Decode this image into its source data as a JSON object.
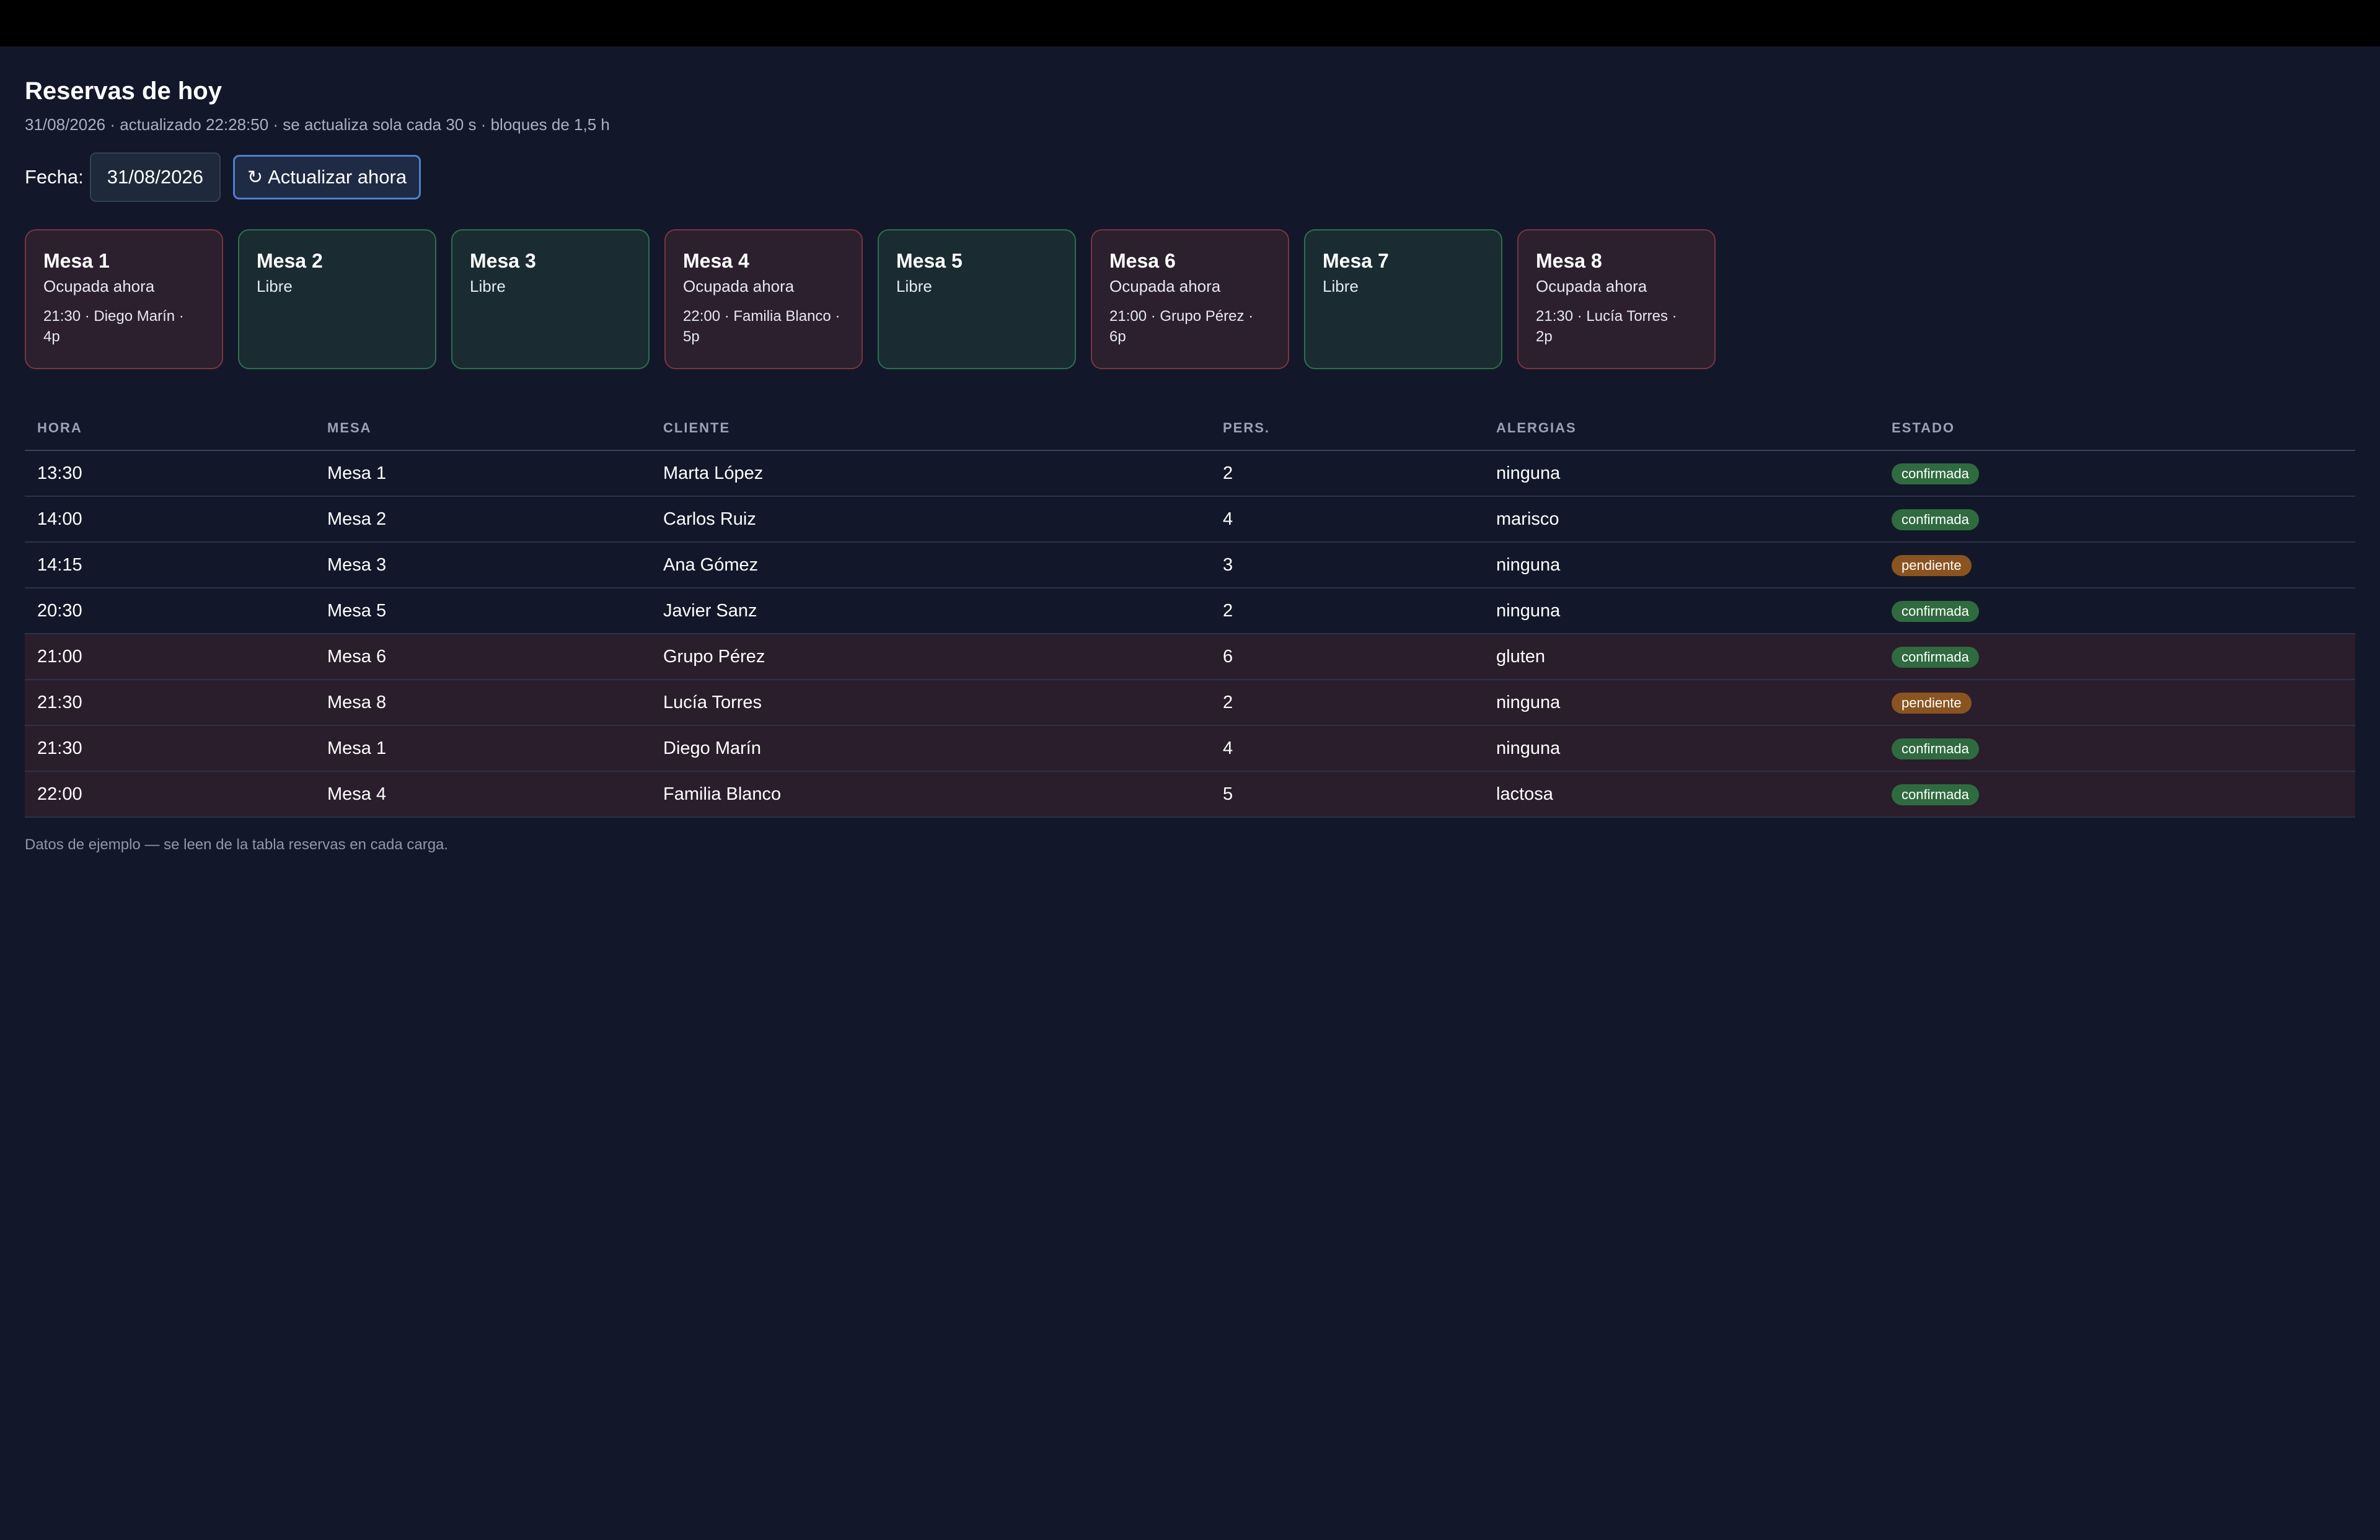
{
  "header": {
    "title": "Reservas de hoy",
    "subtitle": "31/08/2026 · actualizado 22:28:50 · se actualiza sola cada 30 s · bloques de 1,5 h"
  },
  "controls": {
    "date_label": "Fecha:",
    "date_value": "31/08/2026",
    "refresh_icon": "refresh-icon",
    "refresh_label": "Actualizar ahora"
  },
  "colors": {
    "background": "#121829",
    "busy_border": "#7a3541",
    "free_border": "#2f6e4d",
    "badge_confirmada": "#2f6b3f",
    "badge_pendiente": "#8a5420",
    "accent": "#4f7fd1"
  },
  "tables": [
    {
      "name": "Mesa 1",
      "status": "Ocupada ahora",
      "state": "busy",
      "detail": "21:30 · Diego Marín · 4p"
    },
    {
      "name": "Mesa 2",
      "status": "Libre",
      "state": "free",
      "detail": ""
    },
    {
      "name": "Mesa 3",
      "status": "Libre",
      "state": "free",
      "detail": ""
    },
    {
      "name": "Mesa 4",
      "status": "Ocupada ahora",
      "state": "busy",
      "detail": "22:00 · Familia Blanco · 5p"
    },
    {
      "name": "Mesa 5",
      "status": "Libre",
      "state": "free",
      "detail": ""
    },
    {
      "name": "Mesa 6",
      "status": "Ocupada ahora",
      "state": "busy",
      "detail": "21:00 · Grupo Pérez · 6p"
    },
    {
      "name": "Mesa 7",
      "status": "Libre",
      "state": "free",
      "detail": ""
    },
    {
      "name": "Mesa 8",
      "status": "Ocupada ahora",
      "state": "busy",
      "detail": "21:30 · Lucía Torres · 2p"
    }
  ],
  "reservations": {
    "columns": [
      "HORA",
      "MESA",
      "CLIENTE",
      "PERS.",
      "ALERGIAS",
      "ESTADO"
    ],
    "rows": [
      {
        "hora": "13:30",
        "mesa": "Mesa 1",
        "cliente": "Marta López",
        "pers": "2",
        "alergias": "ninguna",
        "estado": "confirmada",
        "highlight": false
      },
      {
        "hora": "14:00",
        "mesa": "Mesa 2",
        "cliente": "Carlos Ruiz",
        "pers": "4",
        "alergias": "marisco",
        "estado": "confirmada",
        "highlight": false
      },
      {
        "hora": "14:15",
        "mesa": "Mesa 3",
        "cliente": "Ana Gómez",
        "pers": "3",
        "alergias": "ninguna",
        "estado": "pendiente",
        "highlight": false
      },
      {
        "hora": "20:30",
        "mesa": "Mesa 5",
        "cliente": "Javier Sanz",
        "pers": "2",
        "alergias": "ninguna",
        "estado": "confirmada",
        "highlight": false
      },
      {
        "hora": "21:00",
        "mesa": "Mesa 6",
        "cliente": "Grupo Pérez",
        "pers": "6",
        "alergias": "gluten",
        "estado": "confirmada",
        "highlight": true
      },
      {
        "hora": "21:30",
        "mesa": "Mesa 8",
        "cliente": "Lucía Torres",
        "pers": "2",
        "alergias": "ninguna",
        "estado": "pendiente",
        "highlight": true
      },
      {
        "hora": "21:30",
        "mesa": "Mesa 1",
        "cliente": "Diego Marín",
        "pers": "4",
        "alergias": "ninguna",
        "estado": "confirmada",
        "highlight": true
      },
      {
        "hora": "22:00",
        "mesa": "Mesa 4",
        "cliente": "Familia Blanco",
        "pers": "5",
        "alergias": "lactosa",
        "estado": "confirmada",
        "highlight": true
      }
    ]
  },
  "footnote": "Datos de ejemplo — se leen de la tabla reservas en cada carga."
}
